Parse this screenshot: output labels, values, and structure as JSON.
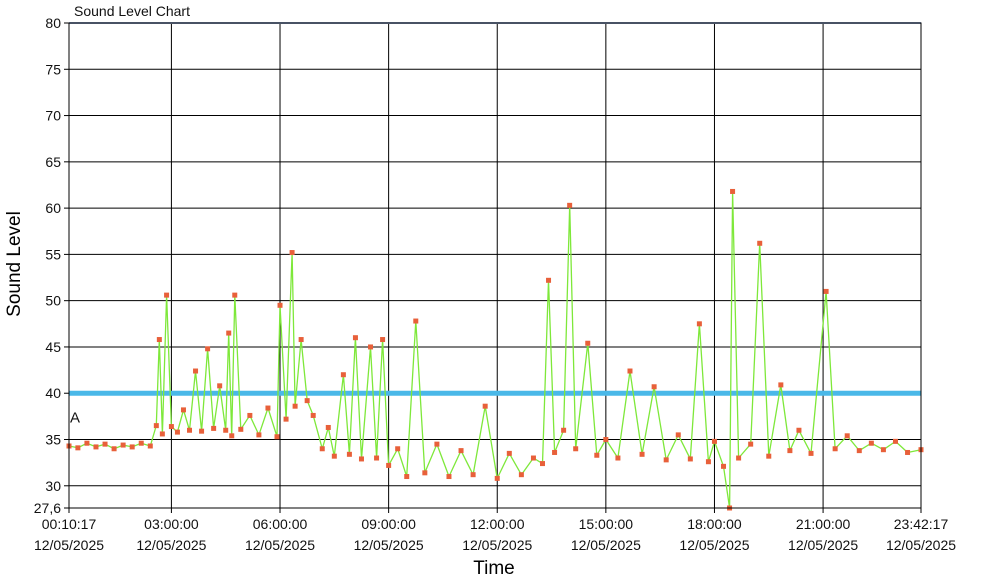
{
  "chart_data": {
    "type": "line",
    "title": "Sound Level Chart",
    "xlabel": "Time",
    "ylabel": "Sound Level",
    "ylim": [
      27.6,
      80
    ],
    "y_ticks": [
      {
        "value": 80,
        "label": "80"
      },
      {
        "value": 75,
        "label": "75"
      },
      {
        "value": 70,
        "label": "70"
      },
      {
        "value": 65,
        "label": "65"
      },
      {
        "value": 60,
        "label": "60"
      },
      {
        "value": 55,
        "label": "55"
      },
      {
        "value": 50,
        "label": "50"
      },
      {
        "value": 45,
        "label": "45"
      },
      {
        "value": 40,
        "label": "40"
      },
      {
        "value": 35,
        "label": "35"
      },
      {
        "value": 30,
        "label": "30"
      },
      {
        "value": 27.6,
        "label": "27,6"
      }
    ],
    "x_range": [
      "00:10:17",
      "23:42:17"
    ],
    "x_ticks": [
      {
        "time": "00:10:17",
        "date": "12/05/2025"
      },
      {
        "time": "03:00:00",
        "date": "12/05/2025"
      },
      {
        "time": "06:00:00",
        "date": "12/05/2025"
      },
      {
        "time": "09:00:00",
        "date": "12/05/2025"
      },
      {
        "time": "12:00:00",
        "date": "12/05/2025"
      },
      {
        "time": "15:00:00",
        "date": "12/05/2025"
      },
      {
        "time": "18:00:00",
        "date": "12/05/2025"
      },
      {
        "time": "21:00:00",
        "date": "12/05/2025"
      },
      {
        "time": "23:42:17",
        "date": "12/05/2025"
      }
    ],
    "grid": true,
    "reference_lines": [
      {
        "y": 40,
        "color": "#4ab8e8"
      },
      {
        "y": 80,
        "color": "#8fa3c8"
      }
    ],
    "annotations": [
      {
        "text": "A",
        "x": "00:12:00",
        "y": 36.2
      }
    ],
    "series": [
      {
        "line_color": "#7ee83a",
        "marker_color": "#e8603a",
        "points": [
          [
            "00:10:17",
            34.3
          ],
          [
            "00:25:00",
            34.1
          ],
          [
            "00:40:00",
            34.6
          ],
          [
            "00:55:00",
            34.2
          ],
          [
            "01:10:00",
            34.5
          ],
          [
            "01:25:00",
            34.0
          ],
          [
            "01:40:00",
            34.4
          ],
          [
            "01:55:00",
            34.2
          ],
          [
            "02:10:00",
            34.6
          ],
          [
            "02:25:00",
            34.3
          ],
          [
            "02:35:00",
            36.5
          ],
          [
            "02:40:00",
            45.8
          ],
          [
            "02:45:00",
            35.6
          ],
          [
            "02:52:00",
            50.6
          ],
          [
            "03:00:00",
            36.4
          ],
          [
            "03:10:00",
            35.8
          ],
          [
            "03:20:00",
            38.2
          ],
          [
            "03:30:00",
            36.0
          ],
          [
            "03:40:00",
            42.4
          ],
          [
            "03:50:00",
            35.9
          ],
          [
            "04:00:00",
            44.8
          ],
          [
            "04:10:00",
            36.2
          ],
          [
            "04:20:00",
            40.8
          ],
          [
            "04:30:00",
            36.0
          ],
          [
            "04:35:00",
            46.5
          ],
          [
            "04:40:00",
            35.4
          ],
          [
            "04:45:00",
            50.6
          ],
          [
            "04:55:00",
            36.1
          ],
          [
            "05:10:00",
            37.6
          ],
          [
            "05:25:00",
            35.5
          ],
          [
            "05:40:00",
            38.4
          ],
          [
            "05:55:00",
            35.3
          ],
          [
            "06:00:00",
            49.5
          ],
          [
            "06:10:00",
            37.2
          ],
          [
            "06:20:00",
            55.2
          ],
          [
            "06:25:00",
            38.6
          ],
          [
            "06:35:00",
            45.8
          ],
          [
            "06:45:00",
            39.2
          ],
          [
            "06:55:00",
            37.6
          ],
          [
            "07:10:00",
            34.0
          ],
          [
            "07:20:00",
            36.3
          ],
          [
            "07:30:00",
            33.2
          ],
          [
            "07:45:00",
            42.0
          ],
          [
            "07:55:00",
            33.4
          ],
          [
            "08:05:00",
            46.0
          ],
          [
            "08:15:00",
            32.9
          ],
          [
            "08:30:00",
            45.0
          ],
          [
            "08:40:00",
            33.0
          ],
          [
            "08:50:00",
            45.8
          ],
          [
            "09:00:00",
            32.2
          ],
          [
            "09:15:00",
            34.0
          ],
          [
            "09:30:00",
            31.0
          ],
          [
            "09:45:00",
            47.8
          ],
          [
            "10:00:00",
            31.4
          ],
          [
            "10:20:00",
            34.5
          ],
          [
            "10:40:00",
            31.0
          ],
          [
            "11:00:00",
            33.8
          ],
          [
            "11:20:00",
            31.2
          ],
          [
            "11:40:00",
            38.6
          ],
          [
            "12:00:00",
            30.8
          ],
          [
            "12:20:00",
            33.5
          ],
          [
            "12:40:00",
            31.2
          ],
          [
            "13:00:00",
            33.0
          ],
          [
            "13:15:00",
            32.4
          ],
          [
            "13:25:00",
            52.2
          ],
          [
            "13:35:00",
            33.6
          ],
          [
            "13:50:00",
            36.0
          ],
          [
            "14:00:00",
            60.3
          ],
          [
            "14:10:00",
            34.0
          ],
          [
            "14:30:00",
            45.4
          ],
          [
            "14:45:00",
            33.3
          ],
          [
            "15:00:00",
            35.0
          ],
          [
            "15:20:00",
            33.0
          ],
          [
            "15:40:00",
            42.4
          ],
          [
            "16:00:00",
            33.4
          ],
          [
            "16:20:00",
            40.7
          ],
          [
            "16:40:00",
            32.8
          ],
          [
            "17:00:00",
            35.5
          ],
          [
            "17:20:00",
            32.9
          ],
          [
            "17:35:00",
            47.5
          ],
          [
            "17:50:00",
            32.6
          ],
          [
            "18:00:00",
            34.8
          ],
          [
            "18:15:00",
            32.1
          ],
          [
            "18:25:00",
            27.6
          ],
          [
            "18:30:00",
            61.8
          ],
          [
            "18:40:00",
            33.0
          ],
          [
            "19:00:00",
            34.5
          ],
          [
            "19:15:00",
            56.2
          ],
          [
            "19:30:00",
            33.2
          ],
          [
            "19:50:00",
            40.9
          ],
          [
            "20:05:00",
            33.8
          ],
          [
            "20:20:00",
            36.0
          ],
          [
            "20:40:00",
            33.5
          ],
          [
            "21:05:00",
            51.0
          ],
          [
            "21:20:00",
            34.0
          ],
          [
            "21:40:00",
            35.4
          ],
          [
            "22:00:00",
            33.8
          ],
          [
            "22:20:00",
            34.6
          ],
          [
            "22:40:00",
            33.9
          ],
          [
            "23:00:00",
            34.8
          ],
          [
            "23:20:00",
            33.6
          ],
          [
            "23:42:17",
            33.9
          ]
        ]
      }
    ]
  }
}
